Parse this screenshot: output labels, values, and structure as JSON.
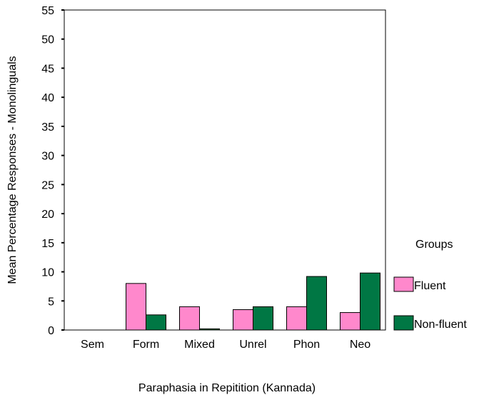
{
  "chart_data": {
    "type": "bar",
    "categories": [
      "Sem",
      "Form",
      "Mixed",
      "Unrel",
      "Phon",
      "Neo"
    ],
    "series": [
      {
        "name": "Fluent",
        "color": "#ff88cc",
        "values": [
          0,
          8.0,
          4.0,
          3.5,
          4.0,
          3.0
        ]
      },
      {
        "name": "Non-fluent",
        "color": "#007744",
        "values": [
          0,
          2.6,
          0.2,
          4.0,
          9.2,
          9.8
        ]
      }
    ],
    "xlabel": "Paraphasia in Repitition (Kannada)",
    "ylabel": "Mean Percentage Responses - Monolinguals",
    "ylim": [
      0,
      55
    ],
    "yticks": [
      0,
      5,
      10,
      15,
      20,
      25,
      30,
      35,
      40,
      45,
      50,
      55
    ],
    "legend_title": "Groups",
    "legend_position": "right",
    "grid": false
  }
}
